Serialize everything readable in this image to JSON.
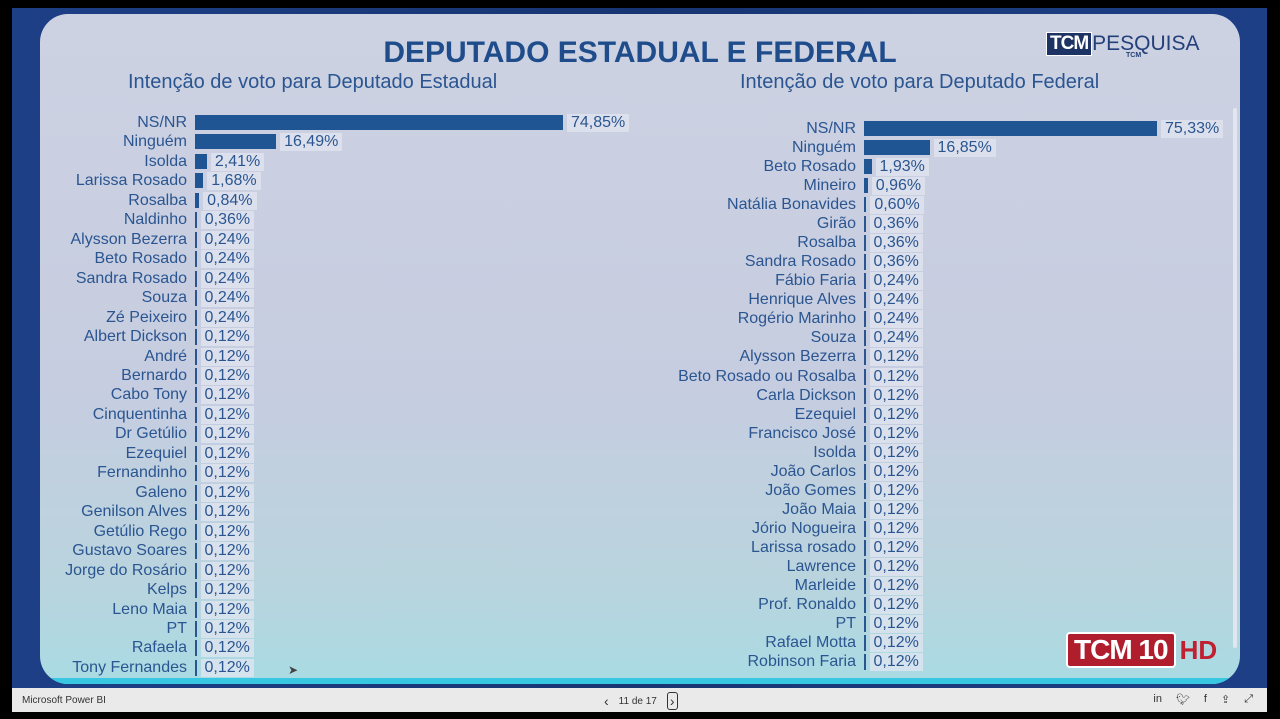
{
  "header": {
    "title": "DEPUTADO ESTADUAL E FEDERAL",
    "logo_text": "TCM PESQUISA"
  },
  "chart_data": [
    {
      "type": "bar",
      "orientation": "horizontal",
      "title": "Intenção de voto para Deputado Estadual",
      "unit": "%",
      "xlim": [
        0,
        74.85
      ],
      "categories": [
        "NS/NR",
        "Ninguém",
        "Isolda",
        "Larissa Rosado",
        "Rosalba",
        "Naldinho",
        "Alysson Bezerra",
        "Beto Rosado",
        "Sandra Rosado",
        "Souza",
        "Zé Peixeiro",
        "Albert Dickson",
        "André",
        "Bernardo",
        "Cabo Tony",
        "Cinquentinha",
        "Dr Getúlio",
        "Ezequiel",
        "Fernandinho",
        "Galeno",
        "Genilson Alves",
        "Getúlio Rego",
        "Gustavo Soares",
        "Jorge do Rosário",
        "Kelps",
        "Leno Maia",
        "PT",
        "Rafaela",
        "Tony Fernandes"
      ],
      "values": [
        74.85,
        16.49,
        2.41,
        1.68,
        0.84,
        0.36,
        0.24,
        0.24,
        0.24,
        0.24,
        0.24,
        0.12,
        0.12,
        0.12,
        0.12,
        0.12,
        0.12,
        0.12,
        0.12,
        0.12,
        0.12,
        0.12,
        0.12,
        0.12,
        0.12,
        0.12,
        0.12,
        0.12,
        0.12
      ],
      "labels": [
        "74,85%",
        "16,49%",
        "2,41%",
        "1,68%",
        "0,84%",
        "0,36%",
        "0,24%",
        "0,24%",
        "0,24%",
        "0,24%",
        "0,24%",
        "0,12%",
        "0,12%",
        "0,12%",
        "0,12%",
        "0,12%",
        "0,12%",
        "0,12%",
        "0,12%",
        "0,12%",
        "0,12%",
        "0,12%",
        "0,12%",
        "0,12%",
        "0,12%",
        "0,12%",
        "0,12%",
        "0,12%",
        "0,12%"
      ]
    },
    {
      "type": "bar",
      "orientation": "horizontal",
      "title": "Intenção de voto para Deputado Federal",
      "unit": "%",
      "xlim": [
        0,
        75.33
      ],
      "categories": [
        "NS/NR",
        "Ninguém",
        "Beto Rosado",
        "Mineiro",
        "Natália Bonavides",
        "Girão",
        "Rosalba",
        "Sandra Rosado",
        "Fábio Faria",
        "Henrique Alves",
        "Rogério Marinho",
        "Souza",
        "Alysson Bezerra",
        "Beto Rosado ou Rosalba",
        "Carla Dickson",
        "Ezequiel",
        "Francisco José",
        "Isolda",
        "João Carlos",
        "João Gomes",
        "João Maia",
        "Jório Nogueira",
        "Larissa rosado",
        "Lawrence",
        "Marleide",
        "Prof. Ronaldo",
        "PT",
        "Rafael Motta",
        "Robinson Faria"
      ],
      "values": [
        75.33,
        16.85,
        1.93,
        0.96,
        0.6,
        0.36,
        0.36,
        0.36,
        0.24,
        0.24,
        0.24,
        0.24,
        0.12,
        0.12,
        0.12,
        0.12,
        0.12,
        0.12,
        0.12,
        0.12,
        0.12,
        0.12,
        0.12,
        0.12,
        0.12,
        0.12,
        0.12,
        0.12,
        0.12
      ],
      "labels": [
        "75,33%",
        "16,85%",
        "1,93%",
        "0,96%",
        "0,60%",
        "0,36%",
        "0,36%",
        "0,36%",
        "0,24%",
        "0,24%",
        "0,24%",
        "0,24%",
        "0,12%",
        "0,12%",
        "0,12%",
        "0,12%",
        "0,12%",
        "0,12%",
        "0,12%",
        "0,12%",
        "0,12%",
        "0,12%",
        "0,12%",
        "0,12%",
        "0,12%",
        "0,12%",
        "0,12%",
        "0,12%",
        "0,12%"
      ]
    }
  ],
  "broadcast": {
    "channel": "TCM 10",
    "hd": "HD"
  },
  "footer": {
    "app": "Microsoft Power BI",
    "page": "11 de 17",
    "prev": "‹",
    "next": "›"
  },
  "colors": {
    "bar": "#1f5592",
    "title": "#1f4d8c"
  }
}
